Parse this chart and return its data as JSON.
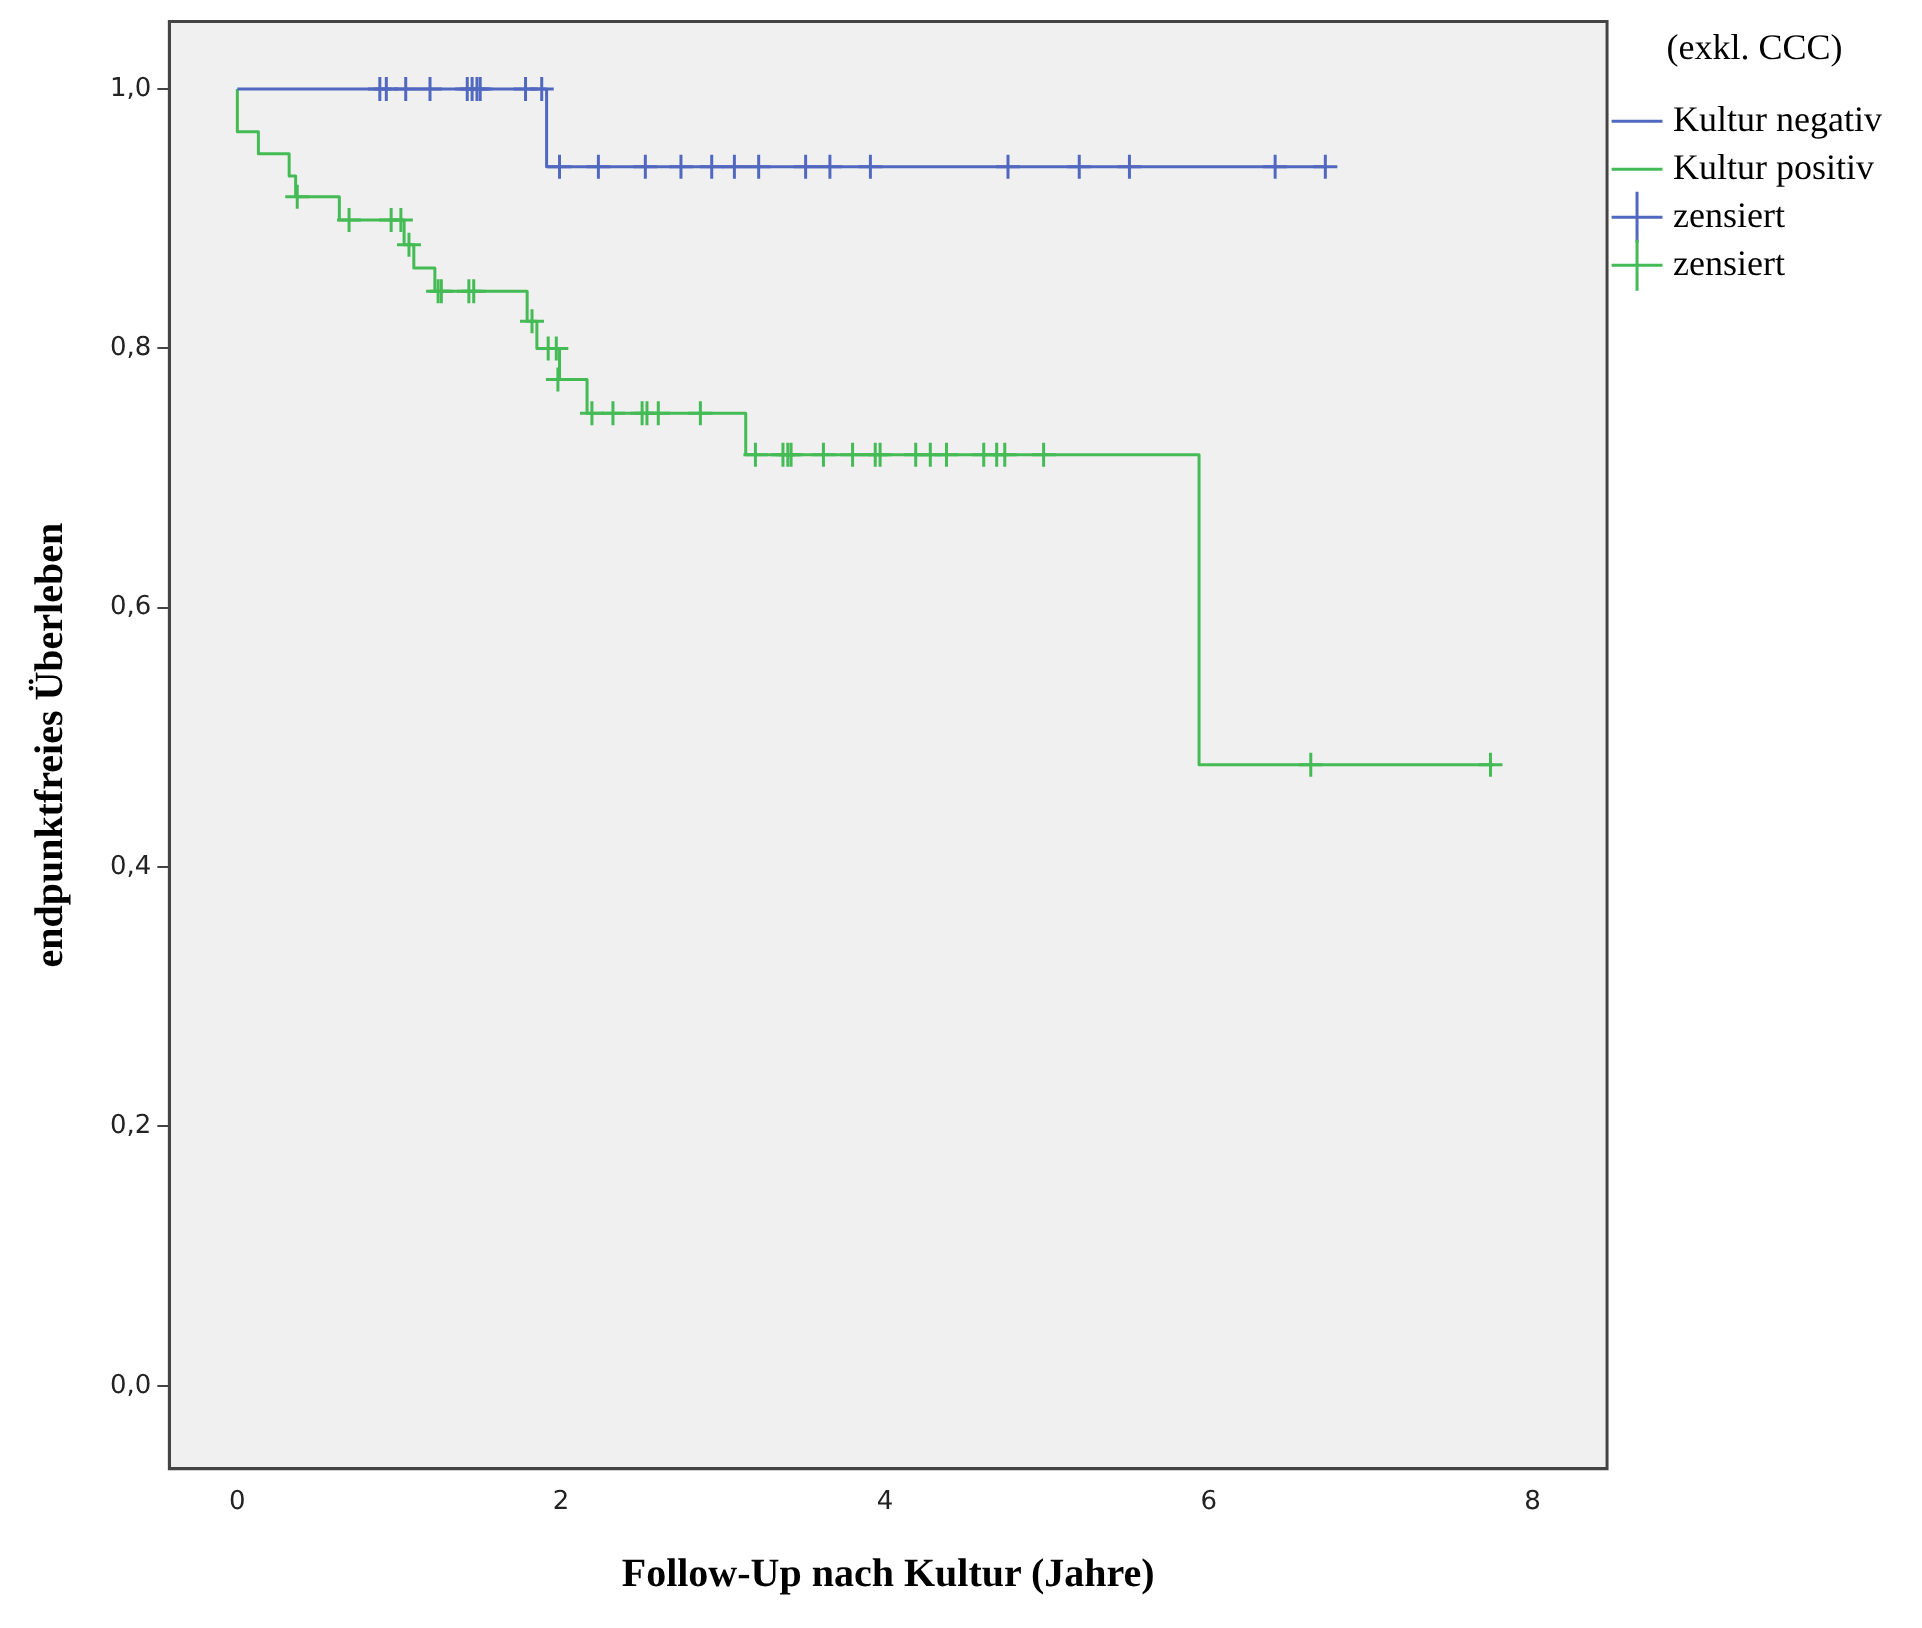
{
  "chart_data": {
    "type": "step",
    "xlabel": "Follow-Up nach Kultur (Jahre)",
    "ylabel": "endpunktfreies Überleben",
    "legend_title": "(exkl. CCC)",
    "legend": "top right",
    "xlim": [
      -0.42,
      8.46
    ],
    "xticks": [
      0,
      2,
      4,
      6,
      8
    ],
    "ylim": [
      -0.064,
      1.052
    ],
    "yticks": [
      {
        "value": 0,
        "label": "0,0"
      },
      {
        "value": 0.2,
        "label": "0,2"
      },
      {
        "value": 0.4,
        "label": "0,4"
      },
      {
        "value": 0.6,
        "label": "0,6"
      },
      {
        "value": 0.8,
        "label": "0,8"
      },
      {
        "value": 1,
        "label": "1,0"
      }
    ],
    "series": [
      {
        "name": "Kultur negativ",
        "color": "#5068c0",
        "marker": "none",
        "x": [
          0,
          1.91,
          6.72
        ],
        "values": [
          1,
          0.94,
          0.94
        ]
      },
      {
        "name": "Kultur positiv",
        "color": "#44bb55",
        "marker": "none",
        "x": [
          0,
          0,
          0.13,
          0.32,
          0.36,
          0.63,
          1.03,
          1.09,
          1.22,
          1.79,
          1.85,
          1.99,
          2.16,
          3.14,
          5.94,
          7.76
        ],
        "values": [
          1,
          0.967,
          0.95,
          0.933,
          0.917,
          0.899,
          0.88,
          0.862,
          0.844,
          0.821,
          0.8,
          0.776,
          0.75,
          0.718,
          0.479,
          0.479
        ]
      },
      {
        "name": "zensiert",
        "type": "scatter",
        "color": "#5068c0",
        "marker": "cross",
        "x": [
          0.88,
          0.92,
          1.04,
          1.19,
          1.42,
          1.45,
          1.48,
          1.5,
          1.78,
          1.88,
          1.99,
          2.23,
          2.52,
          2.74,
          2.93,
          3.07,
          3.22,
          3.51,
          3.66,
          3.91,
          4.76,
          5.2,
          5.51,
          6.41,
          6.72
        ],
        "values": [
          1,
          1,
          1,
          1,
          1,
          1,
          1,
          1,
          1,
          1,
          0.94,
          0.94,
          0.94,
          0.94,
          0.94,
          0.94,
          0.94,
          0.94,
          0.94,
          0.94,
          0.94,
          0.94,
          0.94,
          0.94,
          0.94
        ]
      },
      {
        "name": "zensiert",
        "type": "scatter",
        "color": "#44bb55",
        "marker": "cross",
        "x": [
          0.37,
          0.69,
          0.95,
          1.01,
          1.06,
          1.24,
          1.26,
          1.43,
          1.46,
          1.82,
          1.92,
          1.97,
          1.98,
          2.19,
          2.32,
          2.5,
          2.53,
          2.6,
          2.86,
          3.2,
          3.37,
          3.4,
          3.42,
          3.62,
          3.8,
          3.94,
          3.97,
          4.19,
          4.28,
          4.38,
          4.61,
          4.69,
          4.74,
          4.98,
          6.63,
          7.74
        ],
        "values": [
          0.917,
          0.899,
          0.899,
          0.899,
          0.88,
          0.844,
          0.844,
          0.844,
          0.844,
          0.821,
          0.8,
          0.8,
          0.776,
          0.75,
          0.75,
          0.75,
          0.75,
          0.75,
          0.75,
          0.718,
          0.718,
          0.718,
          0.718,
          0.718,
          0.718,
          0.718,
          0.718,
          0.718,
          0.718,
          0.718,
          0.718,
          0.718,
          0.718,
          0.718,
          0.479,
          0.479
        ]
      }
    ]
  }
}
